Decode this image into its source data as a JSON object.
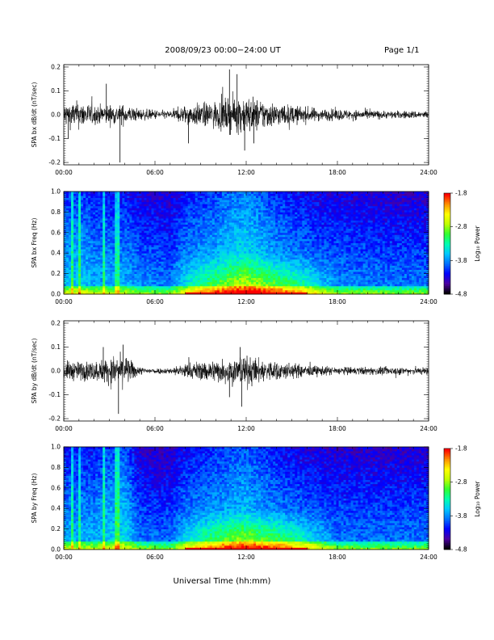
{
  "header": {
    "title": "2008/09/23  00:00−24:00 UT",
    "page": "Page 1/1"
  },
  "x_axis_title": "Universal Time (hh:mm)",
  "colorbar": {
    "label": "Log₁₀ Power",
    "ticks": [
      "-1.8",
      "-2.8",
      "-3.8",
      "-4.8"
    ],
    "colormap": [
      "#000000",
      "#4b00a0",
      "#0000ff",
      "#0070ff",
      "#00c8ff",
      "#00ffb0",
      "#30ff30",
      "#c0ff00",
      "#ffff00",
      "#ff9000",
      "#ff0000"
    ]
  },
  "chart_data": [
    {
      "type": "line",
      "id": "bx-dbdt",
      "ylabel": "SPA bx dB/dt (nT/sec)",
      "xlim": [
        0,
        24
      ],
      "ylim": [
        -0.21,
        0.21
      ],
      "x_ticks": [
        "00:00",
        "06:00",
        "12:00",
        "18:00",
        "24:00"
      ],
      "y_ticks": [
        "-0.2",
        "-0.1",
        "0.0",
        "0.1",
        "0.2"
      ],
      "series": [
        {
          "envelope_hours": [
            0,
            1,
            2,
            3,
            4,
            5,
            6,
            7,
            8,
            9,
            10,
            11,
            12,
            13,
            14,
            15,
            16,
            17,
            18,
            19,
            20,
            21,
            22,
            23,
            24
          ],
          "envelope_amplitude": [
            0.06,
            0.07,
            0.05,
            0.05,
            0.05,
            0.03,
            0.025,
            0.02,
            0.05,
            0.06,
            0.07,
            0.09,
            0.1,
            0.08,
            0.06,
            0.05,
            0.04,
            0.03,
            0.03,
            0.025,
            0.025,
            0.02,
            0.02,
            0.02,
            0.02
          ],
          "spikes": [
            {
              "x": 2.8,
              "y": 0.13
            },
            {
              "x": 3.7,
              "y": -0.2
            },
            {
              "x": 8.2,
              "y": -0.12
            },
            {
              "x": 10.9,
              "y": 0.19
            },
            {
              "x": 11.4,
              "y": 0.17
            },
            {
              "x": 11.9,
              "y": -0.15
            },
            {
              "x": 12.5,
              "y": -0.12
            },
            {
              "x": 0.3,
              "y": -0.1
            }
          ]
        }
      ]
    },
    {
      "type": "heatmap",
      "id": "bx-spectrogram",
      "ylabel": "SPA bx Freq (Hz)",
      "xlim": [
        0,
        24
      ],
      "ylim": [
        0.0,
        1.0
      ],
      "x_ticks": [
        "00:00",
        "06:00",
        "12:00",
        "18:00",
        "24:00"
      ],
      "y_ticks": [
        "0.0",
        "0.2",
        "0.4",
        "0.6",
        "0.8",
        "1.0"
      ],
      "zlim": [
        -4.8,
        -1.8
      ]
    },
    {
      "type": "line",
      "id": "by-dbdt",
      "ylabel": "SPA by dB/dt (nT/sec)",
      "xlim": [
        0,
        24
      ],
      "ylim": [
        -0.21,
        0.21
      ],
      "x_ticks": [
        "00:00",
        "06:00",
        "12:00",
        "18:00",
        "24:00"
      ],
      "y_ticks": [
        "-0.2",
        "-0.1",
        "0.0",
        "0.1",
        "0.2"
      ],
      "series": [
        {
          "envelope_hours": [
            0,
            1,
            2,
            3,
            4,
            5,
            6,
            7,
            8,
            9,
            10,
            11,
            12,
            13,
            14,
            15,
            16,
            17,
            18,
            19,
            20,
            21,
            22,
            23,
            24
          ],
          "envelope_amplitude": [
            0.05,
            0.05,
            0.05,
            0.07,
            0.08,
            0.02,
            0.015,
            0.015,
            0.04,
            0.05,
            0.06,
            0.07,
            0.08,
            0.06,
            0.05,
            0.04,
            0.03,
            0.025,
            0.02,
            0.02,
            0.02,
            0.02,
            0.02,
            0.02,
            0.02
          ],
          "spikes": [
            {
              "x": 2.6,
              "y": 0.1
            },
            {
              "x": 3.6,
              "y": -0.18
            },
            {
              "x": 3.9,
              "y": 0.11
            },
            {
              "x": 11.6,
              "y": 0.1
            },
            {
              "x": 11.7,
              "y": -0.15
            },
            {
              "x": 10.9,
              "y": -0.11
            }
          ]
        }
      ]
    },
    {
      "type": "heatmap",
      "id": "by-spectrogram",
      "ylabel": "SPA by Freq (Hz)",
      "xlim": [
        0,
        24
      ],
      "ylim": [
        0.0,
        1.0
      ],
      "x_ticks": [
        "00:00",
        "06:00",
        "12:00",
        "18:00",
        "24:00"
      ],
      "y_ticks": [
        "0.0",
        "0.2",
        "0.4",
        "0.6",
        "0.8",
        "1.0"
      ],
      "zlim": [
        -4.8,
        -1.8
      ]
    }
  ]
}
